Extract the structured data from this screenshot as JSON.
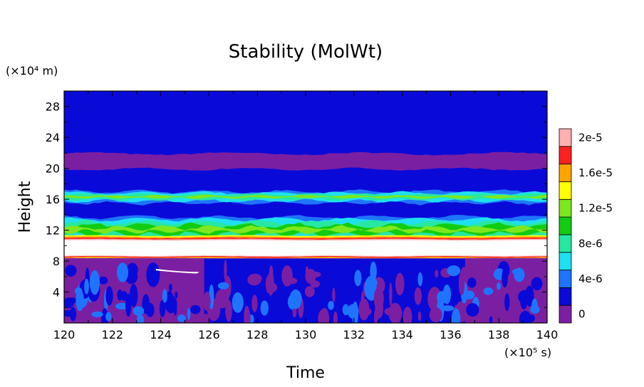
{
  "chart_data": {
    "type": "heatmap",
    "title": "Stability (MolWt)",
    "xlabel": "Time",
    "ylabel": "Height",
    "x_units": "(×10⁵ s)",
    "y_units": "(×10⁴ m)",
    "xlim": [
      120,
      140
    ],
    "ylim": [
      0,
      30
    ],
    "x_ticks": [
      "120",
      "122",
      "124",
      "126",
      "128",
      "130",
      "132",
      "134",
      "136",
      "138",
      "140"
    ],
    "y_ticks": [
      "4",
      "8",
      "12",
      "16",
      "20",
      "24",
      "28"
    ],
    "colorbar": {
      "labels": [
        "0",
        "4e-6",
        "8e-6",
        "1.2e-5",
        "1.6e-5",
        "2e-5"
      ],
      "colors": [
        "#7b1fa2",
        "#0a0ad8",
        "#1f74ff",
        "#1fe0f0",
        "#27e8a0",
        "#12cc12",
        "#7ee81e",
        "#ffff00",
        "#ffa500",
        "#ff2020",
        "#ffb0b0"
      ]
    },
    "layers": [
      {
        "name": "top",
        "y": [
          22,
          30
        ],
        "level": 1
      },
      {
        "name": "purple-band",
        "y": [
          20,
          22
        ],
        "level": 0
      },
      {
        "name": "upper-blue",
        "y": [
          16.8,
          20
        ],
        "level": 1
      },
      {
        "name": "upper-stable-band",
        "y": [
          15.8,
          16.8
        ],
        "level": 6
      },
      {
        "name": "mid-blue",
        "y": [
          13.6,
          15.8
        ],
        "level": 1
      },
      {
        "name": "mid-stable-band",
        "y": [
          11,
          13.6
        ],
        "level": 5
      },
      {
        "name": "strong-stable-layer",
        "y": [
          8.4,
          11
        ],
        "level": 10
      },
      {
        "name": "lower-mixed",
        "y": [
          0,
          8.4
        ],
        "level": 0
      }
    ]
  }
}
